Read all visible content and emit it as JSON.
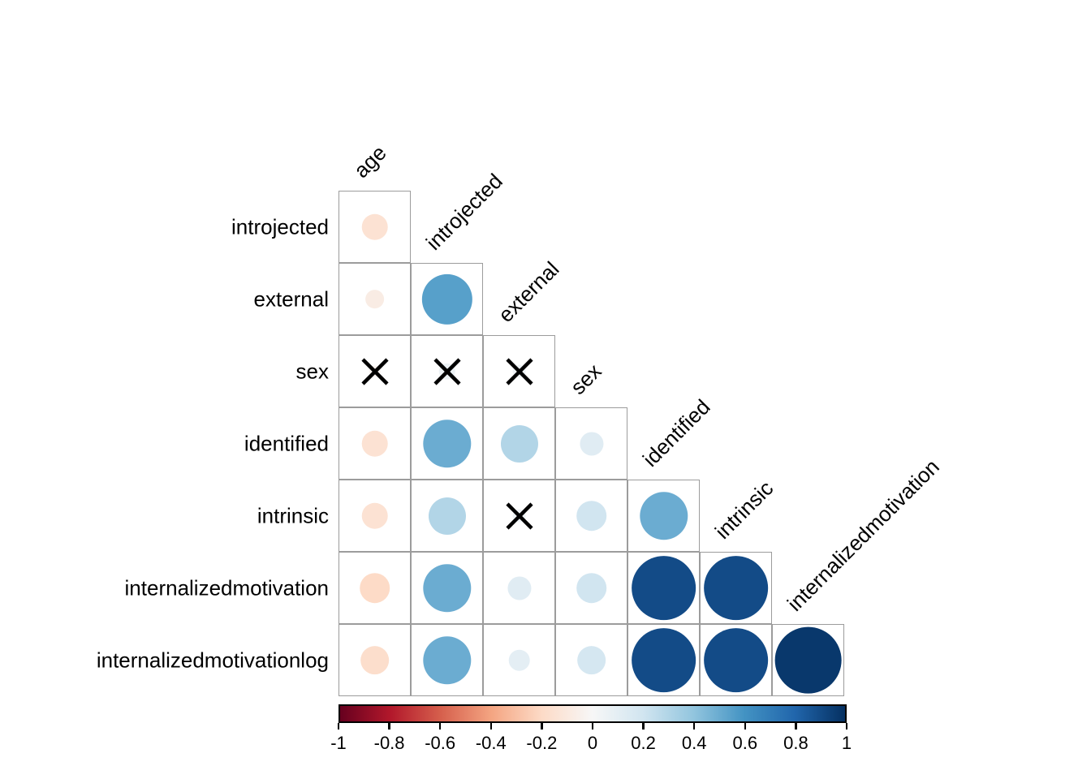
{
  "chart_data": {
    "type": "heatmap",
    "subtype": "correlation-matrix-circles",
    "title": "",
    "description": "Lower-triangular correlogram (corrplot style): circle size and color encode correlation; X marks non-significant correlations",
    "variables": [
      "age",
      "introjected",
      "external",
      "sex",
      "identified",
      "intrinsic",
      "internalizedmotivation",
      "internalizedmotivationlog"
    ],
    "row_labels": [
      "introjected",
      "external",
      "sex",
      "identified",
      "intrinsic",
      "internalizedmotivation",
      "internalizedmotivationlog"
    ],
    "column_labels": [
      "age",
      "introjected",
      "external",
      "sex",
      "identified",
      "intrinsic",
      "internalizedmotivation"
    ],
    "insignificance_marker": "X",
    "cells": [
      {
        "row": "introjected",
        "col": "age",
        "value": -0.15,
        "significant": true
      },
      {
        "row": "external",
        "col": "age",
        "value": -0.08,
        "significant": true
      },
      {
        "row": "external",
        "col": "introjected",
        "value": 0.55,
        "significant": true
      },
      {
        "row": "sex",
        "col": "age",
        "value": -0.03,
        "significant": false
      },
      {
        "row": "sex",
        "col": "introjected",
        "value": 0.06,
        "significant": false
      },
      {
        "row": "sex",
        "col": "external",
        "value": 0.04,
        "significant": false
      },
      {
        "row": "identified",
        "col": "age",
        "value": -0.15,
        "significant": true
      },
      {
        "row": "identified",
        "col": "introjected",
        "value": 0.5,
        "significant": true
      },
      {
        "row": "identified",
        "col": "external",
        "value": 0.3,
        "significant": true
      },
      {
        "row": "identified",
        "col": "sex",
        "value": 0.12,
        "significant": true
      },
      {
        "row": "intrinsic",
        "col": "age",
        "value": -0.15,
        "significant": true
      },
      {
        "row": "intrinsic",
        "col": "introjected",
        "value": 0.3,
        "significant": true
      },
      {
        "row": "intrinsic",
        "col": "external",
        "value": 0.04,
        "significant": false
      },
      {
        "row": "intrinsic",
        "col": "sex",
        "value": 0.2,
        "significant": true
      },
      {
        "row": "intrinsic",
        "col": "identified",
        "value": 0.5,
        "significant": true
      },
      {
        "row": "internalizedmotivation",
        "col": "age",
        "value": -0.2,
        "significant": true
      },
      {
        "row": "internalizedmotivation",
        "col": "introjected",
        "value": 0.5,
        "significant": true
      },
      {
        "row": "internalizedmotivation",
        "col": "external",
        "value": 0.12,
        "significant": true
      },
      {
        "row": "internalizedmotivation",
        "col": "sex",
        "value": 0.2,
        "significant": true
      },
      {
        "row": "internalizedmotivation",
        "col": "identified",
        "value": 0.9,
        "significant": true
      },
      {
        "row": "internalizedmotivation",
        "col": "intrinsic",
        "value": 0.9,
        "significant": true
      },
      {
        "row": "internalizedmotivationlog",
        "col": "age",
        "value": -0.18,
        "significant": true
      },
      {
        "row": "internalizedmotivationlog",
        "col": "introjected",
        "value": 0.5,
        "significant": true
      },
      {
        "row": "internalizedmotivationlog",
        "col": "external",
        "value": 0.1,
        "significant": true
      },
      {
        "row": "internalizedmotivationlog",
        "col": "sex",
        "value": 0.18,
        "significant": true
      },
      {
        "row": "internalizedmotivationlog",
        "col": "identified",
        "value": 0.9,
        "significant": true
      },
      {
        "row": "internalizedmotivationlog",
        "col": "intrinsic",
        "value": 0.9,
        "significant": true
      },
      {
        "row": "internalizedmotivationlog",
        "col": "internalizedmotivation",
        "value": 0.97,
        "significant": true
      }
    ],
    "colorbar": {
      "orientation": "horizontal",
      "range": [
        -1,
        1
      ],
      "tick_labels": [
        "-1",
        "-0.8",
        "-0.6",
        "-0.4",
        "-0.2",
        "0",
        "0.2",
        "0.4",
        "0.6",
        "0.8",
        "1"
      ]
    },
    "palette": {
      "name": "RdBu (red = negative, blue = positive)",
      "stops": [
        {
          "value": -1.0,
          "color": "#67001f"
        },
        {
          "value": -0.8,
          "color": "#b2182b"
        },
        {
          "value": -0.6,
          "color": "#d6604d"
        },
        {
          "value": -0.4,
          "color": "#f4a582"
        },
        {
          "value": -0.2,
          "color": "#fddbc7"
        },
        {
          "value": 0.0,
          "color": "#f7f7f7"
        },
        {
          "value": 0.2,
          "color": "#d1e5f0"
        },
        {
          "value": 0.4,
          "color": "#92c5de"
        },
        {
          "value": 0.6,
          "color": "#4393c3"
        },
        {
          "value": 0.8,
          "color": "#2166ac"
        },
        {
          "value": 1.0,
          "color": "#053061"
        }
      ]
    },
    "colors": {
      "grid_line": "#9c9c9c",
      "x_mark": "#000000",
      "label_text": "#000000",
      "background": "#ffffff"
    }
  }
}
